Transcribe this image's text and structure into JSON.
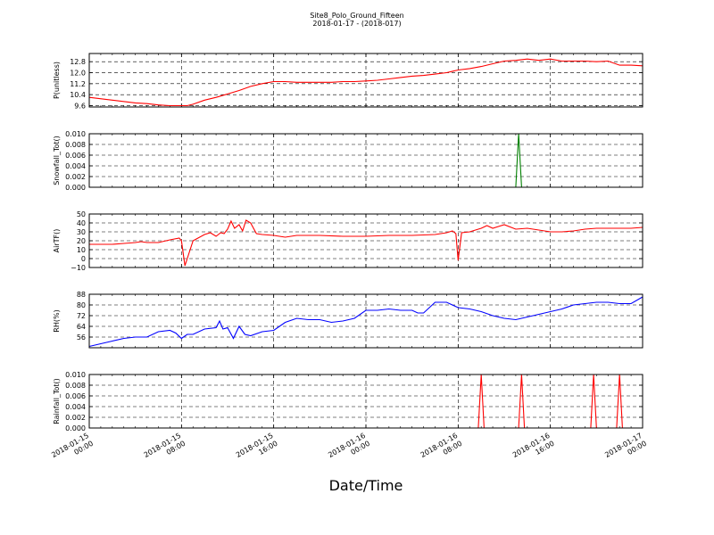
{
  "figure": {
    "title_line1": "Site8_Polo_Ground_Fifteen",
    "title_line2": "2018-01-17 - (2018-017)",
    "xlabel": "Date/Time"
  },
  "chart_data": [
    {
      "type": "line",
      "ylabel": "P(unitless)",
      "ylim": [
        9.5,
        13.4
      ],
      "yticks": [
        9.6,
        10.4,
        11.2,
        12.0,
        12.8
      ],
      "ytick_labels": [
        "9.6",
        "10.4",
        "11.2",
        "12.0",
        "12.8"
      ],
      "color": "#ff0000",
      "grid": true,
      "x": [
        0,
        2,
        4,
        5,
        6,
        7,
        8,
        8.5,
        9,
        10,
        11,
        12,
        13,
        14,
        15,
        16,
        17,
        18,
        19,
        20,
        21,
        22,
        23,
        24,
        25,
        26,
        27,
        28,
        29,
        30,
        31,
        32,
        33,
        34,
        35,
        36,
        37,
        38,
        39,
        40,
        41,
        42,
        43,
        44,
        45,
        46,
        47,
        48
      ],
      "values": [
        10.2,
        10.0,
        9.8,
        9.75,
        9.65,
        9.6,
        9.6,
        9.6,
        9.7,
        10.0,
        10.2,
        10.45,
        10.7,
        11.0,
        11.2,
        11.35,
        11.35,
        11.3,
        11.3,
        11.3,
        11.3,
        11.35,
        11.35,
        11.4,
        11.45,
        11.55,
        11.65,
        11.75,
        11.8,
        11.9,
        12.0,
        12.2,
        12.3,
        12.45,
        12.65,
        12.85,
        12.9,
        13.0,
        12.9,
        13.0,
        12.85,
        12.85,
        12.85,
        12.8,
        12.85,
        12.55,
        12.55,
        12.5
      ]
    },
    {
      "type": "line",
      "ylabel": "Snowfall_Tot()",
      "ylim": [
        0,
        0.01
      ],
      "yticks": [
        0.0,
        0.002,
        0.004,
        0.006,
        0.008,
        0.01
      ],
      "ytick_labels": [
        "0.000",
        "0.002",
        "0.004",
        "0.006",
        "0.008",
        "0.010"
      ],
      "color": "#008000",
      "grid": true,
      "x": [
        0,
        37.0,
        37.25,
        37.5,
        48
      ],
      "values": [
        0,
        0,
        0.01,
        0,
        0
      ]
    },
    {
      "type": "line",
      "ylabel": "AirTF()",
      "ylim": [
        -10,
        50
      ],
      "yticks": [
        -10,
        0,
        10,
        20,
        30,
        40,
        50
      ],
      "ytick_labels": [
        "−10",
        "0",
        "10",
        "20",
        "30",
        "40",
        "50"
      ],
      "color": "#ff0000",
      "grid": true,
      "x": [
        0,
        2,
        3,
        4,
        4.5,
        5,
        6,
        7,
        7.8,
        8.0,
        8.3,
        9,
        10,
        10.5,
        11,
        11.2,
        11.4,
        11.7,
        12,
        12.3,
        12.6,
        13,
        13.3,
        13.6,
        14,
        14.5,
        15,
        16,
        16.5,
        17,
        18,
        20,
        22,
        24,
        26,
        28,
        30,
        31,
        31.5,
        31.8,
        32.0,
        32.3,
        33,
        33.5,
        34,
        34.5,
        35,
        35.5,
        36,
        37,
        38,
        39,
        39.5,
        40,
        41,
        42,
        43,
        44,
        45,
        46,
        47,
        48
      ],
      "values": [
        16,
        16,
        17,
        18,
        19,
        18,
        18,
        21,
        23,
        20,
        -8,
        20,
        27,
        29,
        25,
        27,
        29,
        28,
        33,
        42,
        34,
        38,
        31,
        43,
        40,
        28,
        27,
        26,
        25,
        24,
        26,
        26,
        25,
        25,
        26,
        26,
        27,
        29,
        31,
        28,
        -2,
        29,
        30,
        32,
        34,
        37,
        34,
        36,
        38,
        33,
        34,
        32,
        31,
        30,
        30,
        31,
        33,
        34,
        34,
        34,
        34,
        35
      ]
    },
    {
      "type": "line",
      "ylabel": "RH(%)",
      "ylim": [
        48,
        88
      ],
      "yticks": [
        56,
        64,
        72,
        80,
        88
      ],
      "ytick_labels": [
        "56",
        "64",
        "72",
        "80",
        "88"
      ],
      "color": "#0000ff",
      "grid": true,
      "x": [
        0,
        1,
        2,
        3,
        4,
        5,
        6,
        7,
        7.5,
        8,
        8.5,
        9,
        10,
        11,
        11.3,
        11.6,
        12,
        12.5,
        13,
        13.5,
        14,
        15,
        16,
        17,
        18,
        19,
        20,
        21,
        22,
        23,
        24,
        25,
        26,
        27,
        28,
        28.5,
        29,
        30,
        31,
        32,
        33,
        34,
        35,
        36,
        37,
        38,
        39,
        40,
        41,
        42,
        43,
        44,
        45,
        46,
        47,
        48
      ],
      "values": [
        49,
        51,
        53,
        55,
        56,
        56,
        60,
        61,
        59,
        55,
        58,
        58,
        62,
        63,
        68,
        62,
        63,
        55,
        64,
        58,
        57,
        60,
        61,
        67,
        70,
        69,
        69,
        67,
        68,
        70,
        76,
        76,
        77,
        76,
        76,
        74,
        74,
        82,
        82,
        78,
        77,
        75,
        72,
        70,
        69,
        71,
        73,
        75,
        77,
        80,
        81,
        82,
        82,
        81,
        81,
        86
      ]
    },
    {
      "type": "line",
      "ylabel": "Rainfall_Tot()",
      "ylim": [
        0,
        0.01
      ],
      "yticks": [
        0.0,
        0.002,
        0.004,
        0.006,
        0.008,
        0.01
      ],
      "ytick_labels": [
        "0.000",
        "0.002",
        "0.004",
        "0.006",
        "0.008",
        "0.010"
      ],
      "color": "#ff0000",
      "grid": true,
      "x": [
        0,
        33.75,
        34.0,
        34.25,
        37.25,
        37.5,
        37.75,
        43.5,
        43.75,
        44.0,
        45.75,
        46.0,
        46.25,
        48
      ],
      "values": [
        0,
        0,
        0.01,
        0,
        0,
        0.01,
        0,
        0,
        0.01,
        0,
        0,
        0.01,
        0,
        0
      ]
    }
  ],
  "xaxis": {
    "range_hours": [
      0,
      48
    ],
    "tick_hours": [
      0,
      8,
      16,
      24,
      32,
      40,
      48
    ],
    "tick_labels": [
      [
        "2018-01-15",
        "00:00"
      ],
      [
        "2018-01-15",
        "08:00"
      ],
      [
        "2018-01-15",
        "16:00"
      ],
      [
        "2018-01-16",
        "00:00"
      ],
      [
        "2018-01-16",
        "08:00"
      ],
      [
        "2018-01-16",
        "16:00"
      ],
      [
        "2018-01-17",
        "00:00"
      ]
    ]
  }
}
